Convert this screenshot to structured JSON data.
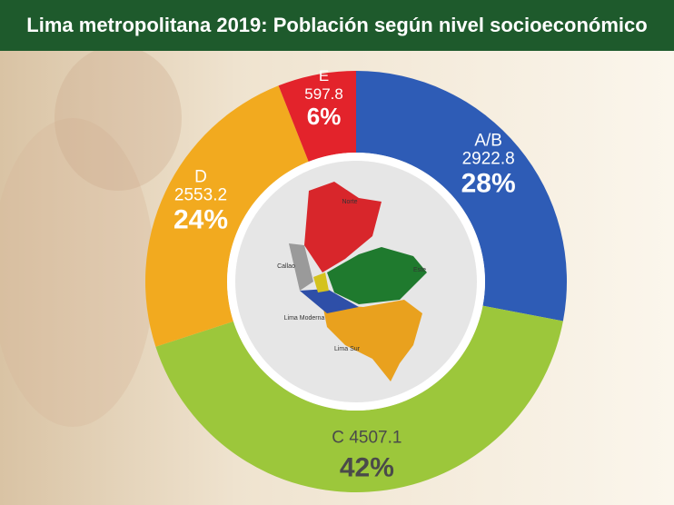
{
  "chart_data": {
    "type": "donut",
    "title": "Lima metropolitana 2019: Población según nivel socioeconómico",
    "categories": [
      "A/B",
      "C",
      "D",
      "E"
    ],
    "amounts": [
      "2922.8",
      "4507.1",
      "2553.2",
      "597.8"
    ],
    "values": [
      28,
      42,
      24,
      6
    ],
    "value_labels": [
      "28%",
      "42%",
      "24%",
      "6%"
    ],
    "colors": [
      "#2e5cb6",
      "#9cc73b",
      "#f2aa1f",
      "#e3232b"
    ],
    "label_colors": [
      "#ffffff",
      "#4a4a4a",
      "#ffffff",
      "#ffffff"
    ]
  },
  "map": {
    "labels": [
      "Norte",
      "Callao",
      "Este",
      "Lima Moderna",
      "Lima Sur"
    ]
  }
}
